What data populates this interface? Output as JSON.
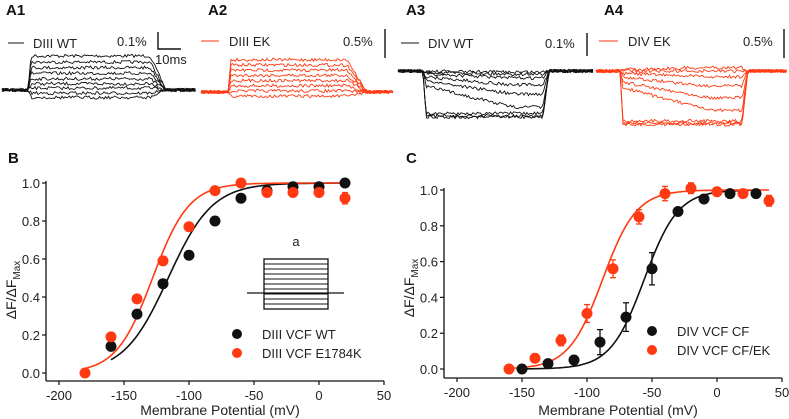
{
  "colors": {
    "wt": "#111111",
    "mutant": "#ff3a12"
  },
  "traces": [
    {
      "panel": "A1",
      "legend": "DIII WT",
      "color_key": "wt",
      "scale_y": "0.1%",
      "scale_x": "10ms",
      "direction": "up",
      "levels": [
        0.55,
        0.45,
        0.36,
        0.27,
        0.18,
        0.1,
        0.03,
        -0.05,
        -0.12
      ]
    },
    {
      "panel": "A2",
      "legend": "DIII EK",
      "color_key": "mutant",
      "scale_y": "0.5%",
      "direction": "up",
      "levels": [
        0.62,
        0.52,
        0.42,
        0.32,
        0.22,
        0.12,
        0.02,
        -0.08
      ]
    },
    {
      "panel": "A3",
      "legend": "DIV WT",
      "color_key": "wt",
      "scale_y": "0.1%",
      "direction": "down",
      "levels": [
        0.02,
        0.06,
        0.14,
        0.28,
        0.46,
        0.72,
        0.85,
        0.9,
        0.92
      ]
    },
    {
      "panel": "A4",
      "legend": "DIV EK",
      "color_key": "mutant",
      "scale_y": "0.5%",
      "direction": "down",
      "levels": [
        -0.06,
        0.0,
        0.1,
        0.26,
        0.46,
        0.68,
        0.86,
        0.9,
        0.92
      ]
    }
  ],
  "chart_data": [
    {
      "panel": "B",
      "type": "scatter",
      "xlabel": "Membrane Potential (mV)",
      "ylabel": "ΔF/ΔF",
      "ylabel_sub": "Max",
      "xlim": [
        -210,
        50
      ],
      "ylim": [
        -0.05,
        1.02
      ],
      "xticks": [
        -200,
        -150,
        -100,
        -50,
        0,
        50
      ],
      "yticks": [
        "0.0",
        "0.2",
        "0.4",
        "0.6",
        "0.8",
        "1.0"
      ],
      "inset_label": "a",
      "series": [
        {
          "name": "DIII VCF WT",
          "color_key": "wt",
          "x": [
            -160,
            -140,
            -120,
            -100,
            -80,
            -60,
            -40,
            -20,
            0,
            20
          ],
          "y": [
            0.14,
            0.31,
            0.47,
            0.62,
            0.8,
            0.92,
            0.96,
            0.98,
            0.98,
            1.0
          ],
          "err": [
            0,
            0,
            0,
            0,
            0,
            0,
            0,
            0,
            0,
            0
          ],
          "fit": {
            "v_half": -116,
            "k": 17,
            "x_range": [
              -160,
              20
            ]
          }
        },
        {
          "name": "DIII VCF E1784K",
          "color_key": "mutant",
          "x": [
            -180,
            -160,
            -140,
            -120,
            -100,
            -80,
            -60,
            -40,
            -20,
            0,
            20
          ],
          "y": [
            0.0,
            0.19,
            0.39,
            0.59,
            0.77,
            0.96,
            1.0,
            0.95,
            0.95,
            0.95,
            0.92
          ],
          "err": [
            0,
            0,
            0,
            0,
            0,
            0,
            0,
            0,
            0,
            0.02,
            0.03
          ],
          "fit": {
            "v_half": -128,
            "k": 14,
            "x_range": [
              -180,
              20
            ]
          }
        }
      ]
    },
    {
      "panel": "C",
      "type": "scatter",
      "xlabel": "Membrane Potential (mV)",
      "ylabel": "ΔF/ΔF",
      "ylabel_sub": "Max",
      "xlim": [
        -210,
        50
      ],
      "ylim": [
        -0.05,
        1.04
      ],
      "xticks": [
        -200,
        -150,
        -100,
        -50,
        0,
        50
      ],
      "yticks": [
        "0.0",
        "0.2",
        "0.4",
        "0.6",
        "0.8",
        "1.0"
      ],
      "series": [
        {
          "name": "DIV VCF CF",
          "color_key": "wt",
          "x": [
            -150,
            -130,
            -110,
            -90,
            -70,
            -50,
            -30,
            -10,
            10,
            30
          ],
          "y": [
            0.0,
            0.03,
            0.05,
            0.15,
            0.29,
            0.56,
            0.88,
            0.95,
            0.98,
            0.98
          ],
          "err": [
            0,
            0,
            0,
            0.07,
            0.08,
            0.09,
            0.02,
            0,
            0,
            0
          ],
          "fit": {
            "v_half": -56,
            "k": 13,
            "x_range": [
              -150,
              30
            ]
          }
        },
        {
          "name": "DIV VCF CF/EK",
          "color_key": "mutant",
          "x": [
            -160,
            -140,
            -120,
            -100,
            -80,
            -60,
            -40,
            -20,
            0,
            20,
            40
          ],
          "y": [
            0.0,
            0.06,
            0.16,
            0.31,
            0.56,
            0.85,
            0.98,
            1.01,
            0.99,
            0.98,
            0.94
          ],
          "err": [
            0.01,
            0.01,
            0.03,
            0.05,
            0.05,
            0.04,
            0.04,
            0.03,
            0.02,
            0.02,
            0.03
          ],
          "fit": {
            "v_half": -88,
            "k": 13,
            "x_range": [
              -160,
              40
            ]
          }
        }
      ]
    }
  ]
}
